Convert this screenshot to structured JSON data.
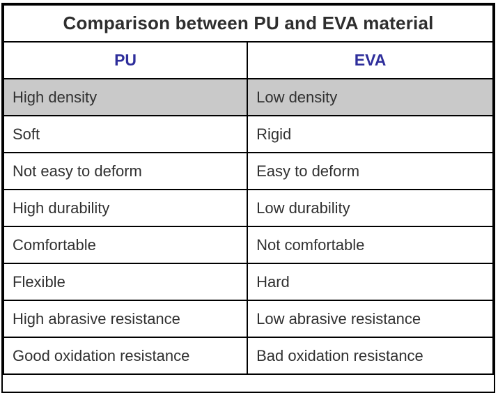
{
  "table": {
    "title": "Comparison between PU and EVA material",
    "columns": [
      {
        "label": "PU"
      },
      {
        "label": "EVA"
      }
    ],
    "rows": [
      {
        "pu": "High density",
        "eva": "Low density",
        "highlighted": true
      },
      {
        "pu": "Soft",
        "eva": "Rigid",
        "highlighted": false
      },
      {
        "pu": "Not easy to deform",
        "eva": "Easy to deform",
        "highlighted": false
      },
      {
        "pu": "High durability",
        "eva": "Low durability",
        "highlighted": false
      },
      {
        "pu": "Comfortable",
        "eva": "Not comfortable",
        "highlighted": false
      },
      {
        "pu": "Flexible",
        "eva": "Hard",
        "highlighted": false
      },
      {
        "pu": "High abrasive resistance",
        "eva": "Low abrasive resistance",
        "highlighted": false
      },
      {
        "pu": "Good oxidation resistance",
        "eva": "Bad oxidation resistance",
        "highlighted": false
      }
    ],
    "colors": {
      "title_text": "#2e2e2e",
      "header_text": "#2e2e9b",
      "body_text": "#303030",
      "highlight_row_bg": "#c9c9c9",
      "border": "#000000",
      "background": "#ffffff"
    }
  }
}
